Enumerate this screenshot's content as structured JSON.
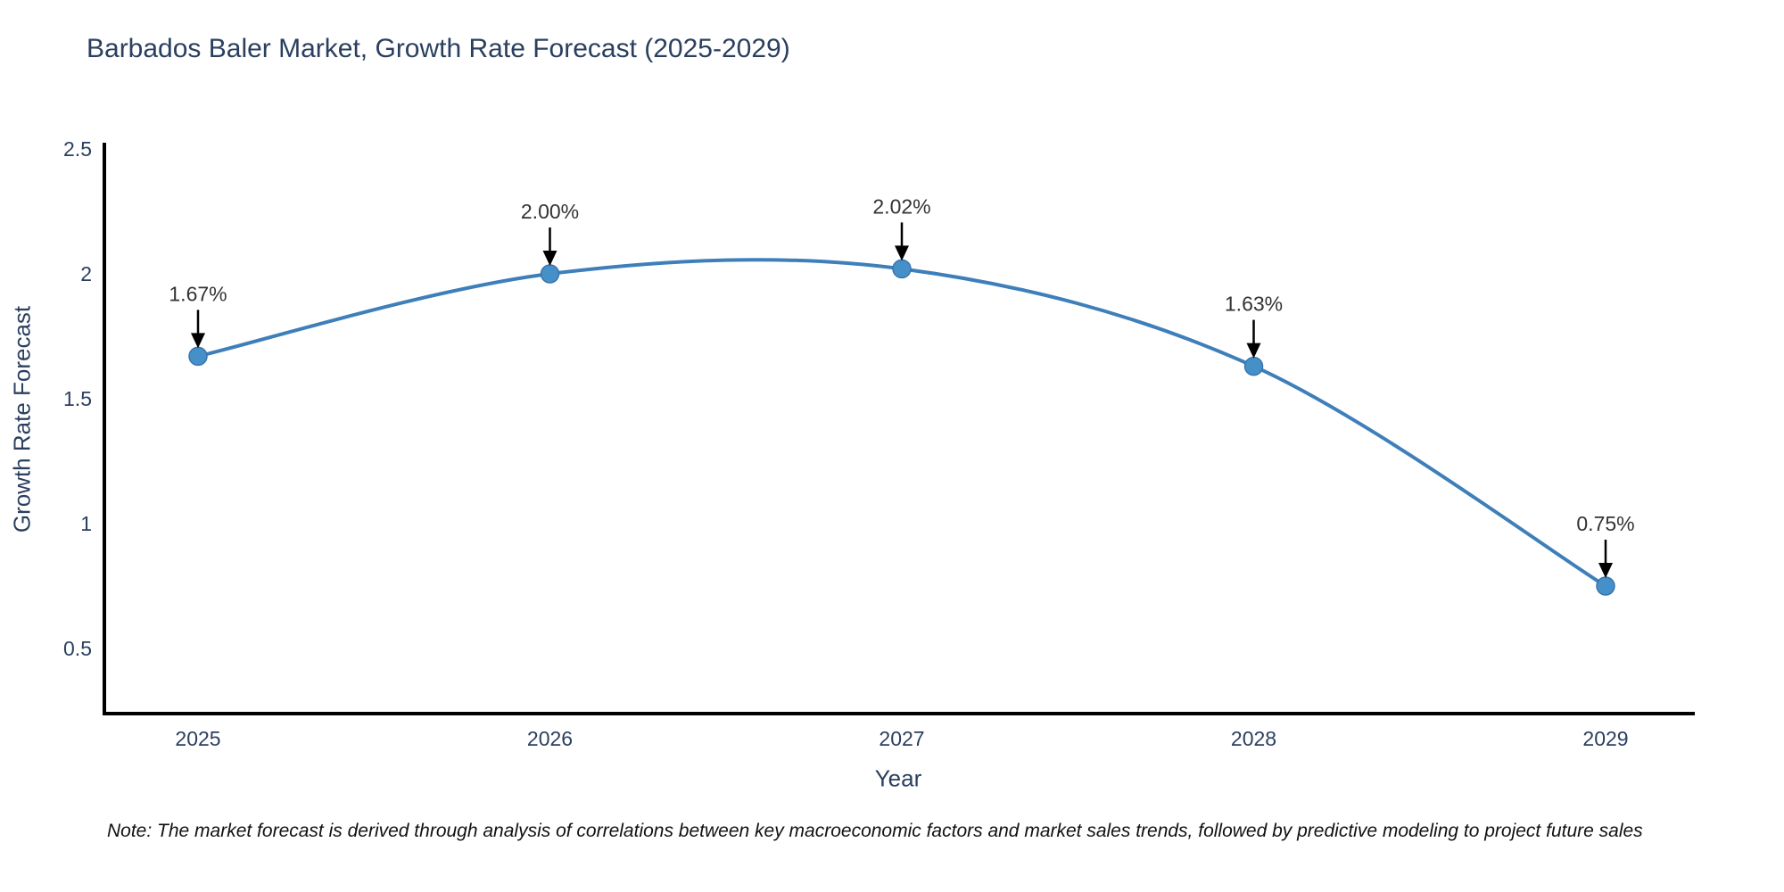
{
  "title": "Barbados Baler Market, Growth Rate Forecast (2025-2029)",
  "note": "Note: The market forecast is derived through analysis of correlations between key macroeconomic factors and market sales trends, followed by predictive modeling to project future sales",
  "chart_data": {
    "type": "line",
    "title": "Barbados Baler Market, Growth Rate Forecast (2025-2029)",
    "x": [
      "2025",
      "2026",
      "2027",
      "2028",
      "2029"
    ],
    "values": [
      1.67,
      2.0,
      2.02,
      1.63,
      0.75
    ],
    "point_labels": [
      "1.67%",
      "2.00%",
      "2.02%",
      "1.63%",
      "0.75%"
    ],
    "xlabel": "Year",
    "ylabel": "Growth Rate Forecast",
    "ytick_labels": [
      "0.5",
      "1",
      "1.5",
      "2",
      "2.5"
    ],
    "ytick_values": [
      0.5,
      1,
      1.5,
      2,
      2.5
    ],
    "ylim": [
      0.24,
      2.52
    ],
    "grid": false,
    "legend": "none",
    "smooth": true,
    "colors": {
      "line": "#3e7fba",
      "marker_fill": "#4690c9",
      "marker_edge": "#3876ad",
      "axis_line": "#000000",
      "tick_label": "#2a3f5f",
      "title": "#2a3f5f",
      "annotation_text": "#333333",
      "annotation_arrow": "#000000",
      "background": "#ffffff"
    }
  }
}
